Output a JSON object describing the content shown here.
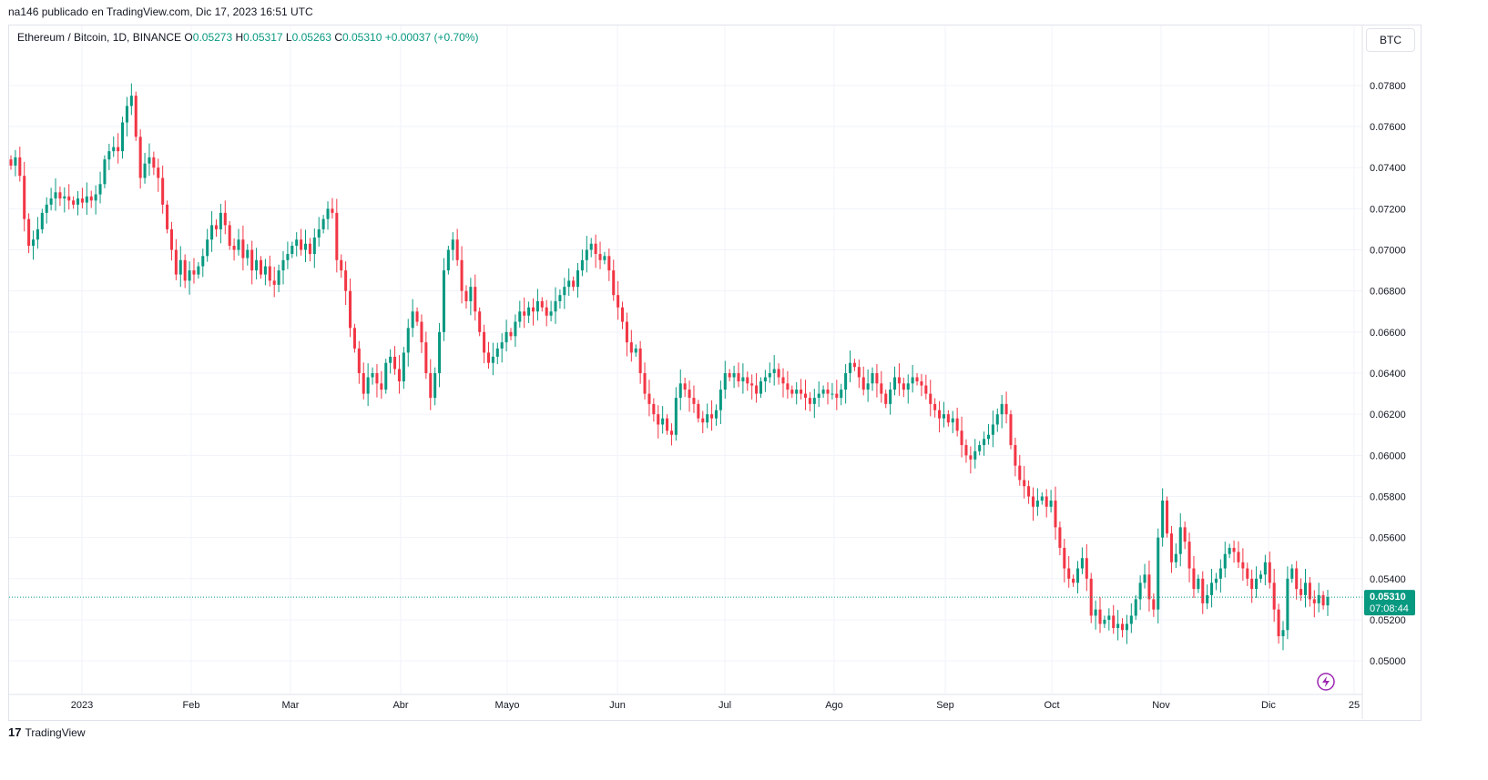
{
  "header": {
    "published_line": "na146 publicado en TradingView.com, Dic 17, 2023 16:51 UTC"
  },
  "legend": {
    "symbol": "Ethereum / Bitcoin, 1D, BINANCE",
    "open_label": "O",
    "open": "0.05273",
    "high_label": "H",
    "high": "0.05317",
    "low_label": "L",
    "low": "0.05263",
    "close_label": "C",
    "close": "0.05310",
    "change": "+0.00037 (+0.70%)"
  },
  "currency_button": "BTC",
  "price_badge": {
    "price": "0.05310",
    "countdown": "07:08:44"
  },
  "footer": {
    "logo_text": "TradingView"
  },
  "colors": {
    "up": "#089981",
    "down": "#f23645",
    "grid": "#f0f3fa",
    "badge": "#089981"
  },
  "icons": {
    "replay": "lightning-icon",
    "logo": "tradingview-logo-icon"
  },
  "chart_data": {
    "type": "candlestick",
    "x_axis_labels": [
      "2023",
      "Feb",
      "Mar",
      "Abr",
      "Mayo",
      "Jun",
      "Jul",
      "Ago",
      "Sep",
      "Oct",
      "Nov",
      "Dic",
      "25"
    ],
    "y_axis_labels": [
      "0.07800",
      "0.07600",
      "0.07400",
      "0.07200",
      "0.07000",
      "0.06800",
      "0.06600",
      "0.06400",
      "0.06200",
      "0.06000",
      "0.05800",
      "0.05600",
      "0.05400",
      "0.05200",
      "0.05000"
    ],
    "y_range": [
      0.0485,
      0.0795
    ],
    "last_price": 0.0531,
    "close_series": [
      0.0741,
      0.0745,
      0.0736,
      0.0715,
      0.0702,
      0.0705,
      0.071,
      0.0718,
      0.0722,
      0.0725,
      0.0728,
      0.0725,
      0.0726,
      0.0724,
      0.0722,
      0.0725,
      0.0723,
      0.0726,
      0.0724,
      0.0727,
      0.0732,
      0.0744,
      0.0748,
      0.075,
      0.0748,
      0.0762,
      0.077,
      0.0775,
      0.0755,
      0.0735,
      0.0742,
      0.0745,
      0.074,
      0.0735,
      0.0722,
      0.071,
      0.07,
      0.0688,
      0.0695,
      0.0685,
      0.069,
      0.0688,
      0.0692,
      0.0697,
      0.0705,
      0.0712,
      0.071,
      0.0718,
      0.0712,
      0.0702,
      0.07,
      0.0705,
      0.0696,
      0.07,
      0.069,
      0.0695,
      0.0688,
      0.0692,
      0.0685,
      0.0683,
      0.069,
      0.0695,
      0.0698,
      0.0702,
      0.0705,
      0.07,
      0.0703,
      0.0698,
      0.0706,
      0.071,
      0.0715,
      0.072,
      0.0718,
      0.0695,
      0.069,
      0.068,
      0.0662,
      0.0652,
      0.064,
      0.063,
      0.0638,
      0.064,
      0.0635,
      0.0632,
      0.0645,
      0.0648,
      0.0642,
      0.0636,
      0.065,
      0.0662,
      0.067,
      0.0665,
      0.0655,
      0.064,
      0.0628,
      0.064,
      0.066,
      0.069,
      0.07,
      0.0705,
      0.0695,
      0.068,
      0.0675,
      0.0682,
      0.067,
      0.066,
      0.065,
      0.0645,
      0.0648,
      0.0652,
      0.0655,
      0.066,
      0.0658,
      0.0665,
      0.067,
      0.0668,
      0.0672,
      0.067,
      0.0675,
      0.0672,
      0.0668,
      0.067,
      0.0675,
      0.0678,
      0.0682,
      0.0685,
      0.0682,
      0.069,
      0.0695,
      0.07,
      0.0703,
      0.0698,
      0.0695,
      0.0697,
      0.069,
      0.0678,
      0.0672,
      0.0665,
      0.0655,
      0.065,
      0.0652,
      0.064,
      0.063,
      0.0625,
      0.062,
      0.0615,
      0.0618,
      0.0612,
      0.061,
      0.0628,
      0.0635,
      0.0632,
      0.0628,
      0.0625,
      0.0618,
      0.0616,
      0.062,
      0.0618,
      0.0622,
      0.0632,
      0.064,
      0.0638,
      0.064,
      0.0636,
      0.0638,
      0.0635,
      0.0634,
      0.063,
      0.0636,
      0.0638,
      0.064,
      0.0642,
      0.0638,
      0.0635,
      0.0632,
      0.063,
      0.0632,
      0.063,
      0.0628,
      0.0625,
      0.0628,
      0.063,
      0.0632,
      0.063,
      0.063,
      0.0628,
      0.0632,
      0.064,
      0.0645,
      0.0643,
      0.0638,
      0.0632,
      0.0635,
      0.064,
      0.0635,
      0.063,
      0.0625,
      0.0632,
      0.0638,
      0.0635,
      0.0632,
      0.0635,
      0.0638,
      0.0636,
      0.0634,
      0.063,
      0.0625,
      0.0622,
      0.0618,
      0.062,
      0.0616,
      0.0618,
      0.0612,
      0.0605,
      0.06,
      0.0598,
      0.0602,
      0.0605,
      0.0608,
      0.061,
      0.0615,
      0.062,
      0.0625,
      0.062,
      0.0605,
      0.0595,
      0.0588,
      0.0585,
      0.058,
      0.0575,
      0.0578,
      0.058,
      0.0575,
      0.0578,
      0.0565,
      0.0555,
      0.0545,
      0.054,
      0.0538,
      0.0545,
      0.055,
      0.054,
      0.0522,
      0.0525,
      0.0518,
      0.052,
      0.0522,
      0.0516,
      0.0518,
      0.0515,
      0.0518,
      0.0522,
      0.053,
      0.0538,
      0.0542,
      0.053,
      0.0525,
      0.056,
      0.0578,
      0.0562,
      0.0548,
      0.0552,
      0.0565,
      0.0558,
      0.0545,
      0.0535,
      0.054,
      0.0528,
      0.0532,
      0.0538,
      0.054,
      0.0545,
      0.0552,
      0.0555,
      0.0553,
      0.0548,
      0.0545,
      0.054,
      0.0535,
      0.054,
      0.0542,
      0.0548,
      0.0538,
      0.0525,
      0.0512,
      0.0515,
      0.054,
      0.0545,
      0.0535,
      0.0532,
      0.0538,
      0.053,
      0.0528,
      0.0532,
      0.0527,
      0.0531
    ]
  }
}
